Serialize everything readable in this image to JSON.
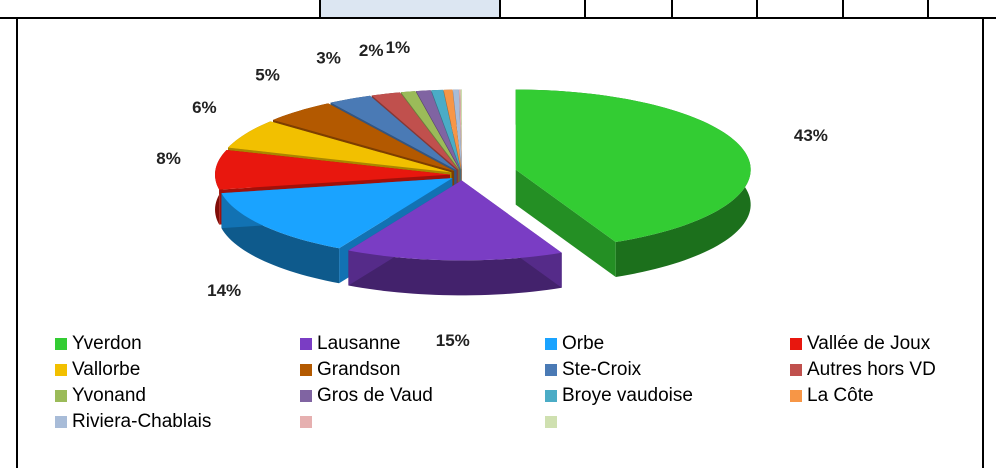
{
  "chart_data": {
    "type": "pie",
    "categories": [
      "Yverdon",
      "Lausanne",
      "Orbe",
      "Vallée de Joux",
      "Vallorbe",
      "Grandson",
      "Ste-Croix",
      "Autres hors VD",
      "Yvonand",
      "Gros de Vaud",
      "Broye vaudoise",
      "La Côte",
      "Riviera-Chablais",
      null,
      null
    ],
    "values": [
      43,
      15,
      14,
      8,
      6,
      5,
      3,
      2,
      1,
      1,
      0.8,
      0.6,
      0.4,
      0.1,
      0.1
    ],
    "value_labels": [
      "43%",
      "15%",
      "14%",
      "8%",
      "6%",
      "5%",
      "3%",
      "2%",
      "1%",
      null,
      null,
      null,
      null,
      null,
      null
    ],
    "colors": [
      "#33cc33",
      "#7a3dc4",
      "#1aa3ff",
      "#e8170e",
      "#f2c000",
      "#b35900",
      "#4a7ab5",
      "#c0504d",
      "#9bbb59",
      "#8064a2",
      "#4bacc6",
      "#f79646",
      "#a8bcd8",
      "#e6b0b0",
      "#cfe0b0"
    ],
    "legend": "bottom"
  }
}
